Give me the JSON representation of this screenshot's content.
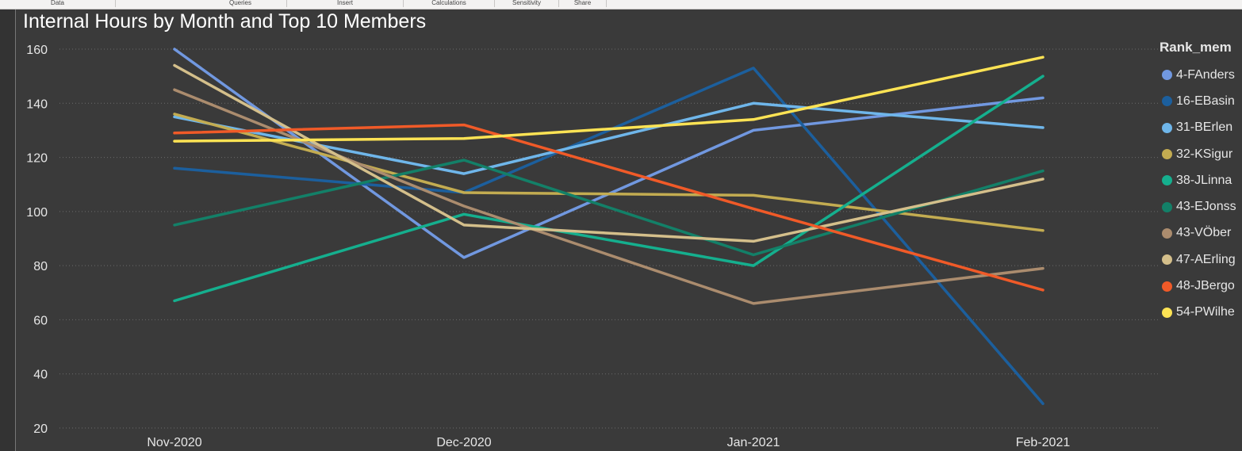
{
  "ribbon": {
    "groups": [
      "Data",
      "Queries",
      "Insert",
      "Calculations",
      "Sensitivity",
      "Share"
    ]
  },
  "chart_data": {
    "type": "line",
    "title": "Internal Hours by Month and Top 10 Members",
    "xlabel": "",
    "ylabel": "",
    "categories": [
      "Nov-2020",
      "Dec-2020",
      "Jan-2021",
      "Feb-2021"
    ],
    "ylim": [
      20,
      160
    ],
    "yticks": [
      20,
      40,
      60,
      80,
      100,
      120,
      140,
      160
    ],
    "grid": true,
    "legend_title": "Rank_mem",
    "legend_position": "right",
    "series": [
      {
        "name": "4-FAnders",
        "color": "#7198e0",
        "values": [
          160,
          83,
          130,
          142
        ]
      },
      {
        "name": "16-EBasin",
        "color": "#1c5f9d",
        "values": [
          116,
          107,
          153,
          29
        ]
      },
      {
        "name": "31-BErlen",
        "color": "#6fb6ea",
        "values": [
          135,
          114,
          140,
          131
        ]
      },
      {
        "name": "32-KSigur",
        "color": "#c3ac51",
        "values": [
          136,
          107,
          106,
          93
        ]
      },
      {
        "name": "38-JLinna",
        "color": "#15af8e",
        "values": [
          67,
          99,
          80,
          150
        ]
      },
      {
        "name": "43-EJonss",
        "color": "#138068",
        "values": [
          95,
          119,
          84,
          115
        ]
      },
      {
        "name": "43-VÖber",
        "color": "#ab8c6e",
        "values": [
          145,
          102,
          66,
          79
        ]
      },
      {
        "name": "47-AErling",
        "color": "#d4bf8b",
        "values": [
          154,
          95,
          89,
          112
        ]
      },
      {
        "name": "48-JBergo",
        "color": "#f05a28",
        "values": [
          129,
          132,
          101,
          71
        ]
      },
      {
        "name": "54-PWilhe",
        "color": "#fde354",
        "values": [
          126,
          127,
          134,
          157
        ]
      }
    ]
  }
}
